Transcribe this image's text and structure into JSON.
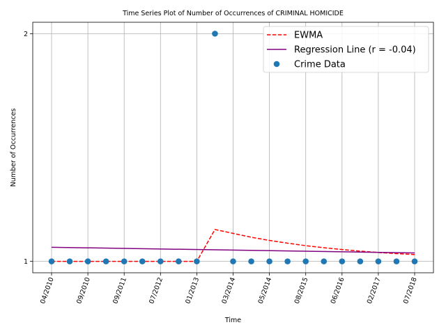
{
  "chart_data": {
    "type": "scatter",
    "title": "Time Series Plot of Number of Occurrences of CRIMINAL HOMICIDE",
    "xlabel": "Time",
    "ylabel": "Number of Occurrences",
    "x_tick_labels": [
      "04/2010",
      "09/2010",
      "09/2011",
      "07/2012",
      "01/2013",
      "03/2014",
      "05/2014",
      "08/2015",
      "06/2016",
      "02/2017",
      "07/2018"
    ],
    "y_ticks": [
      1,
      2
    ],
    "ylim": [
      0.95,
      2.05
    ],
    "grid": true,
    "legend_position": "top-right",
    "series": [
      {
        "name": "Crime Data",
        "kind": "scatter",
        "color": "#1f77b4",
        "y": [
          1,
          1,
          1,
          1,
          1,
          1,
          1,
          1,
          1,
          2,
          1,
          1,
          1,
          1,
          1,
          1,
          1,
          1,
          1,
          1,
          1
        ]
      },
      {
        "name": "EWMA",
        "kind": "dashed-line",
        "color": "#ff0000",
        "y": [
          1,
          1,
          1,
          1,
          1,
          1,
          1,
          1,
          1,
          1.14,
          1.123,
          1.106,
          1.092,
          1.08,
          1.069,
          1.06,
          1.052,
          1.045,
          1.039,
          1.034,
          1.03
        ]
      },
      {
        "name": "Regression Line (r = -0.04)",
        "kind": "line",
        "color": "#800080",
        "y_start": 1.062,
        "y_end": 1.037
      }
    ]
  }
}
